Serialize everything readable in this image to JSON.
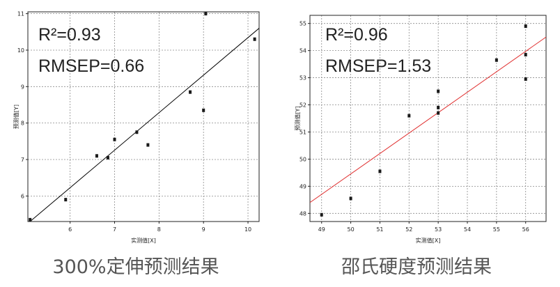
{
  "chart_data": [
    {
      "type": "scatter",
      "title": "",
      "caption": "300%定伸预测结果",
      "xlabel": "实测值[X]",
      "ylabel": "预测值[Y]",
      "annotations": [
        "R²=0.93",
        "RMSEP=0.66"
      ],
      "xlim": [
        5.05,
        10.25
      ],
      "ylim": [
        5.3,
        11.05
      ],
      "xticks": [
        "6",
        "7",
        "8",
        "9",
        "10"
      ],
      "yticks": [
        "6",
        "7",
        "8",
        "9",
        "10",
        "11"
      ],
      "grid": true,
      "point_color": "#1a1a1a",
      "line_color": "#000000",
      "fit_line": {
        "x": [
          5.05,
          10.25
        ],
        "y": [
          5.25,
          10.6
        ]
      },
      "x": [
        5.1,
        5.9,
        6.6,
        6.85,
        7.0,
        7.5,
        7.75,
        8.7,
        9.0,
        9.05,
        10.15
      ],
      "y": [
        5.35,
        5.9,
        7.1,
        7.05,
        7.55,
        7.75,
        7.4,
        8.85,
        8.35,
        11.0,
        10.3
      ]
    },
    {
      "type": "scatter",
      "title": "",
      "caption": "邵氏硬度预测结果",
      "xlabel": "实测值[X]",
      "ylabel": "预测值[Y]",
      "annotations": [
        "R²=0.96",
        "RMSEP=1.53"
      ],
      "xlim": [
        48.6,
        56.7
      ],
      "ylim": [
        47.7,
        55.3
      ],
      "xticks": [
        "49",
        "50",
        "51",
        "52",
        "53",
        "54",
        "55",
        "56"
      ],
      "yticks": [
        "48",
        "49",
        "50",
        "51",
        "52",
        "53",
        "54",
        "55"
      ],
      "grid": true,
      "point_color": "#1a1a1a",
      "line_color": "#e03030",
      "fit_line": {
        "x": [
          48.6,
          56.7
        ],
        "y": [
          48.4,
          54.5
        ]
      },
      "x": [
        49,
        50,
        51,
        52,
        53,
        53,
        53,
        55,
        56,
        56,
        56
      ],
      "y": [
        47.95,
        48.55,
        49.55,
        51.6,
        52.5,
        51.9,
        51.7,
        53.65,
        54.9,
        53.85,
        52.95
      ]
    }
  ]
}
